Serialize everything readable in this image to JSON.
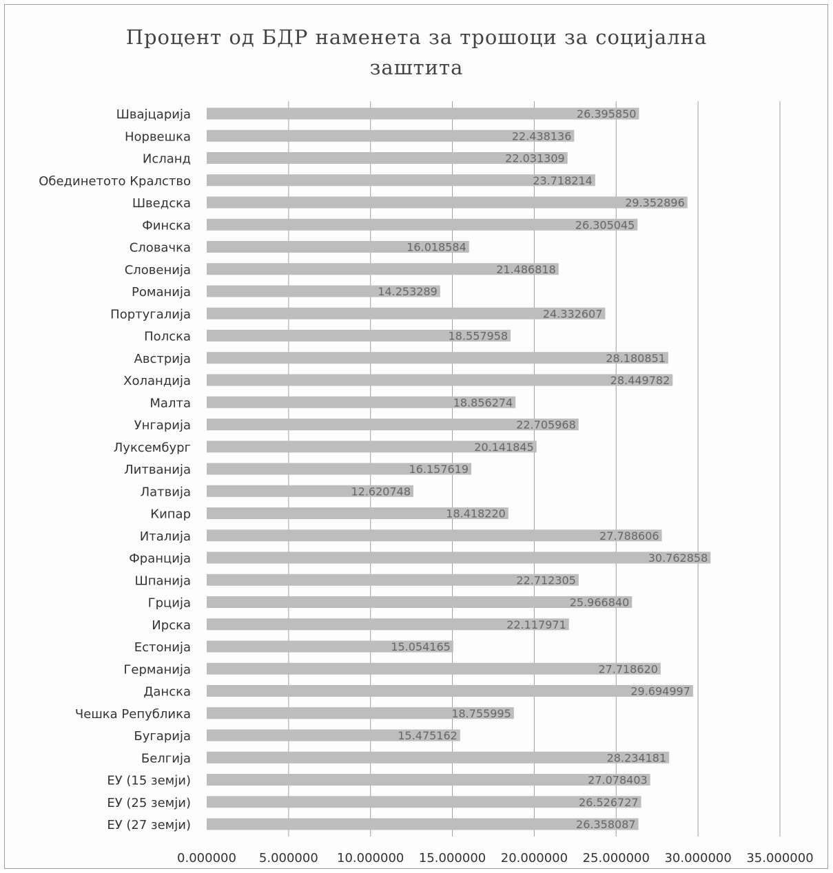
{
  "chart_data": {
    "type": "bar",
    "orientation": "horizontal",
    "title_lines": [
      "Процент од БДР наменета за трошоци за социјална",
      "заштита"
    ],
    "categories": [
      "Швајцарија",
      "Норвешка",
      "Исланд",
      "Обединетото Кралство",
      "Шведска",
      "Финска",
      "Словачка",
      "Словенија",
      "Романија",
      "Португалија",
      "Полска",
      "Австрија",
      "Холандија",
      "Малта",
      "Унгарија",
      "Луксембург",
      "Литванија",
      "Латвија",
      "Кипар",
      "Италија",
      "Франција",
      "Шпанија",
      "Грција",
      "Ирска",
      "Естонија",
      "Германија",
      "Данска",
      "Чешка Република",
      "Бугарија",
      "Белгија",
      "ЕУ (15 земји)",
      "ЕУ (25 земји)",
      "ЕУ (27 земји)"
    ],
    "values": [
      26.39585,
      22.438136,
      22.031309,
      23.718214,
      29.352896,
      26.305045,
      16.018584,
      21.486818,
      14.253289,
      24.332607,
      18.557958,
      28.180851,
      28.449782,
      18.856274,
      22.705968,
      20.141845,
      16.157619,
      12.620748,
      18.41822,
      27.788606,
      30.762858,
      22.712305,
      25.96684,
      22.117971,
      15.054165,
      27.71862,
      29.694997,
      18.755995,
      15.475162,
      28.234181,
      27.078403,
      26.526727,
      26.358087
    ],
    "value_labels": [
      "26.395850",
      "22.438136",
      "22.031309",
      "23.718214",
      "29.352896",
      "26.305045",
      "16.018584",
      "21.486818",
      "14.253289",
      "24.332607",
      "18.557958",
      "28.180851",
      "28.449782",
      "18.856274",
      "22.705968",
      "20.141845",
      "16.157619",
      "12.620748",
      "18.418220",
      "27.788606",
      "30.762858",
      "22.712305",
      "25.966840",
      "22.117971",
      "15.054165",
      "27.718620",
      "29.694997",
      "18.755995",
      "15.475162",
      "28.234181",
      "27.078403",
      "26.526727",
      "26.358087"
    ],
    "x_ticks": [
      "0.000000",
      "5.000000",
      "10.000000",
      "15.000000",
      "20.000000",
      "25.000000",
      "30.000000",
      "35.000000"
    ],
    "xlim": [
      0,
      35
    ],
    "xlabel": "",
    "ylabel": "",
    "grid": true,
    "legend": "none",
    "bar_color": "#bdbdbd",
    "grid_color": "#9e9e9e"
  }
}
